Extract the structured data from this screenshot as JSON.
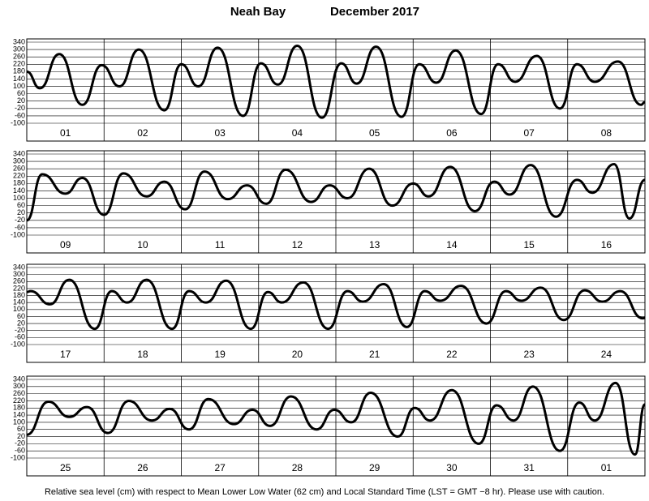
{
  "chart_data": [
    {
      "type": "line",
      "title": "Neah Bay",
      "subtitle": "December 2017",
      "categories": [
        "01",
        "02",
        "03",
        "04",
        "05",
        "06",
        "07",
        "08"
      ],
      "x": [
        0,
        0.17,
        0.42,
        0.72,
        0.97,
        1.2,
        1.45,
        1.78,
        2.0,
        2.22,
        2.47,
        2.8,
        3.03,
        3.25,
        3.5,
        3.82,
        4.07,
        4.27,
        4.52,
        4.85,
        5.08,
        5.3,
        5.55,
        5.88,
        6.1,
        6.32,
        6.6,
        6.9,
        7.12,
        7.35,
        7.65,
        7.95,
        8
      ],
      "series": [
        {
          "color": "#000000",
          "values": [
            180,
            90,
            275,
            0,
            215,
            100,
            300,
            -30,
            220,
            100,
            310,
            -60,
            225,
            110,
            320,
            -70,
            225,
            115,
            315,
            -65,
            220,
            120,
            295,
            -50,
            220,
            125,
            265,
            -20,
            220,
            125,
            235,
            0,
            15
          ]
        }
      ],
      "xlim": [
        0,
        8
      ],
      "ylim": [
        -100,
        340
      ],
      "yticks": [
        -100,
        -60,
        -20,
        20,
        60,
        100,
        140,
        180,
        220,
        260,
        300,
        340
      ],
      "grid": true
    },
    {
      "type": "line",
      "categories": [
        "09",
        "10",
        "11",
        "12",
        "13",
        "14",
        "15",
        "16"
      ],
      "x": [
        0,
        0.2,
        0.5,
        0.72,
        1.0,
        1.25,
        1.55,
        1.78,
        2.05,
        2.3,
        2.6,
        2.85,
        3.1,
        3.35,
        3.68,
        3.92,
        4.15,
        4.43,
        4.73,
        5.0,
        5.2,
        5.48,
        5.8,
        6.05,
        6.25,
        6.52,
        6.85,
        7.12,
        7.32,
        7.6,
        7.8,
        8
      ],
      "series": [
        {
          "color": "#000000",
          "values": [
            -20,
            230,
            125,
            210,
            10,
            235,
            110,
            190,
            40,
            245,
            95,
            170,
            70,
            255,
            80,
            170,
            100,
            260,
            60,
            180,
            110,
            270,
            30,
            190,
            120,
            280,
            0,
            200,
            130,
            285,
            -10,
            200
          ]
        }
      ],
      "xlim": [
        0,
        8
      ],
      "ylim": [
        -100,
        340
      ],
      "yticks": [
        -100,
        -60,
        -20,
        20,
        60,
        100,
        140,
        180,
        220,
        260,
        300,
        340
      ],
      "grid": true
    },
    {
      "type": "line",
      "categories": [
        "17",
        "18",
        "19",
        "20",
        "21",
        "22",
        "23",
        "24"
      ],
      "x": [
        0,
        0.05,
        0.3,
        0.55,
        0.88,
        1.1,
        1.3,
        1.55,
        1.88,
        2.1,
        2.32,
        2.58,
        2.9,
        3.12,
        3.3,
        3.58,
        3.9,
        4.15,
        4.35,
        4.62,
        4.92,
        5.15,
        5.35,
        5.62,
        5.95,
        6.2,
        6.4,
        6.65,
        6.95,
        7.22,
        7.45,
        7.68,
        7.97,
        8
      ],
      "series": [
        {
          "color": "#000000",
          "values": [
            200,
            205,
            130,
            270,
            -10,
            205,
            140,
            270,
            -10,
            205,
            140,
            265,
            -10,
            200,
            140,
            255,
            -10,
            205,
            145,
            245,
            0,
            205,
            150,
            235,
            20,
            205,
            150,
            225,
            40,
            210,
            145,
            205,
            50,
            52
          ]
        }
      ],
      "xlim": [
        0,
        8
      ],
      "ylim": [
        -100,
        340
      ],
      "yticks": [
        -100,
        -60,
        -20,
        20,
        60,
        100,
        140,
        180,
        220,
        260,
        300,
        340
      ],
      "grid": true
    },
    {
      "type": "line",
      "categories": [
        "25",
        "26",
        "27",
        "28",
        "29",
        "30",
        "31",
        "01"
      ],
      "x": [
        0,
        0.28,
        0.55,
        0.78,
        1.05,
        1.32,
        1.62,
        1.85,
        2.1,
        2.35,
        2.68,
        2.92,
        3.15,
        3.42,
        3.75,
        3.98,
        4.2,
        4.45,
        4.8,
        5.02,
        5.22,
        5.5,
        5.85,
        6.08,
        6.3,
        6.55,
        6.9,
        7.15,
        7.35,
        7.62,
        7.87,
        8
      ],
      "series": [
        {
          "color": "#000000",
          "values": [
            30,
            215,
            130,
            185,
            40,
            220,
            110,
            175,
            60,
            230,
            90,
            170,
            80,
            245,
            60,
            170,
            100,
            265,
            20,
            180,
            110,
            280,
            -20,
            195,
            110,
            300,
            -60,
            210,
            110,
            320,
            -80,
            200
          ]
        }
      ],
      "xlim": [
        0,
        8
      ],
      "ylim": [
        -100,
        340
      ],
      "yticks": [
        -100,
        -60,
        -20,
        20,
        60,
        100,
        140,
        180,
        220,
        260,
        300,
        340
      ],
      "grid": true,
      "note": "Relative sea level (cm) with respect to Mean Lower Low Water (62 cm) and Local Standard Time (LST = GMT −8 hr). Please use with caution."
    }
  ]
}
